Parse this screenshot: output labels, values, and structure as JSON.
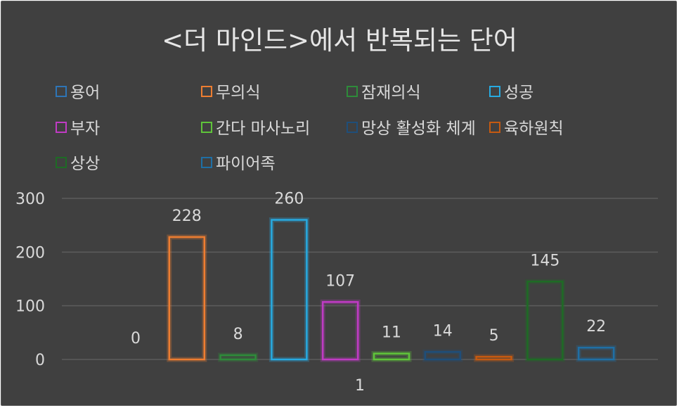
{
  "chart_data": {
    "type": "bar",
    "title": "<더 마인드>에서 반복되는 단어",
    "categories": [
      "1"
    ],
    "ylim": [
      0,
      300
    ],
    "yticks": [
      0,
      100,
      200,
      300
    ],
    "grid": true,
    "legend_position": "top",
    "series": [
      {
        "name": "용어",
        "values": [
          0
        ],
        "color": "#2E75B6"
      },
      {
        "name": "무의식",
        "values": [
          228
        ],
        "color": "#ED7D31"
      },
      {
        "name": "잠재의식",
        "values": [
          8
        ],
        "color": "#2E8B3A"
      },
      {
        "name": "성공",
        "values": [
          260
        ],
        "color": "#27AAE1"
      },
      {
        "name": "부자",
        "values": [
          107
        ],
        "color": "#C03BC4"
      },
      {
        "name": "간다 마사노리",
        "values": [
          11
        ],
        "color": "#5FC43A"
      },
      {
        "name": "망상 활성화 체계",
        "values": [
          14
        ],
        "color": "#1F4E79"
      },
      {
        "name": "육하원칙",
        "values": [
          5
        ],
        "color": "#C55A11"
      },
      {
        "name": "상상",
        "values": [
          145
        ],
        "color": "#1E6B25"
      },
      {
        "name": "파이어족",
        "values": [
          22
        ],
        "color": "#1F6FA5"
      }
    ]
  }
}
